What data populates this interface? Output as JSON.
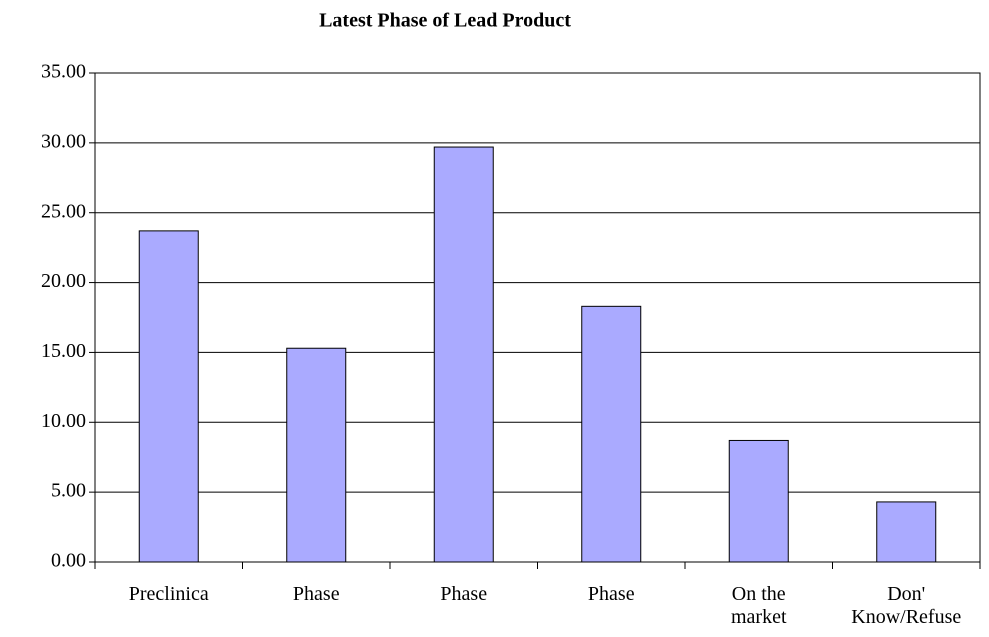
{
  "chart_data": {
    "type": "bar",
    "title": "Latest Phase of Lead Product",
    "categories": [
      "Preclinica",
      "Phase",
      "Phase",
      "Phase",
      "On the\nmarket",
      "Don'\nKnow/Refuse"
    ],
    "values": [
      23.7,
      15.3,
      29.7,
      18.3,
      8.7,
      4.3
    ],
    "color": "#aaaaff",
    "ylim": [
      0,
      35
    ],
    "yticks": [
      {
        "value": 0,
        "label": "0.00"
      },
      {
        "value": 5,
        "label": "5.00"
      },
      {
        "value": 10,
        "label": "10.00"
      },
      {
        "value": 15,
        "label": "15.00"
      },
      {
        "value": 20,
        "label": "20.00"
      },
      {
        "value": 25,
        "label": "25.00"
      },
      {
        "value": 30,
        "label": "30.00"
      },
      {
        "value": 35,
        "label": "35.00"
      }
    ],
    "grid": true
  }
}
